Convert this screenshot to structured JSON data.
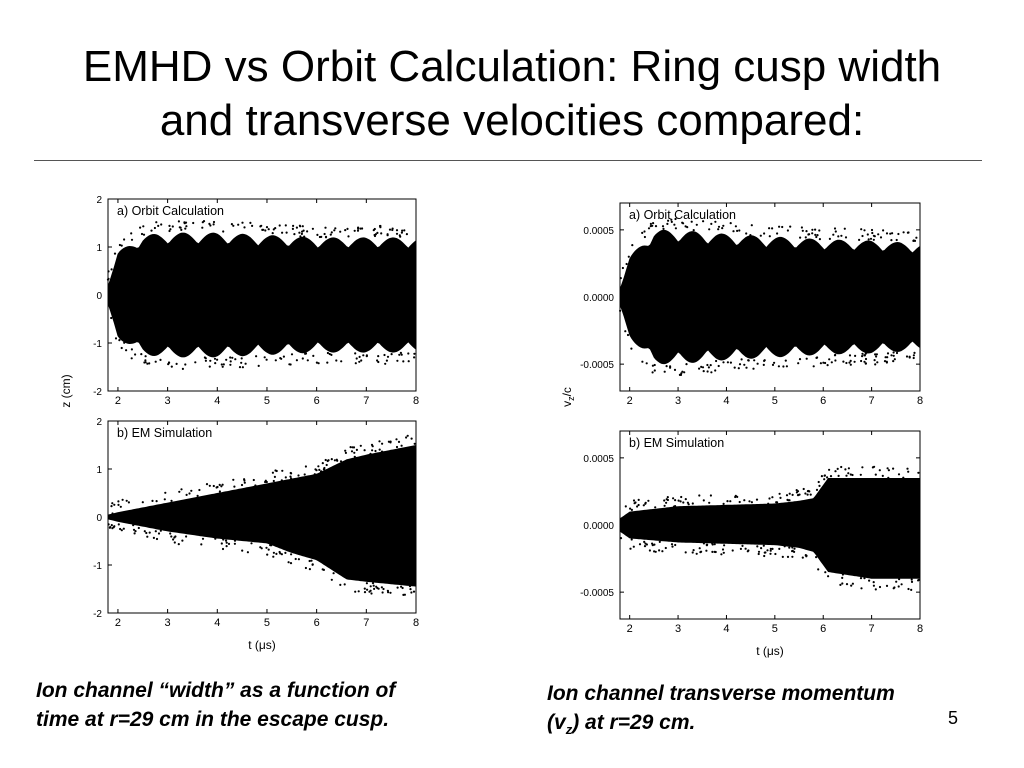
{
  "slide": {
    "title_line1": "EMHD vs Orbit Calculation: Ring cusp width",
    "title_line2": "and transverse velocities compared:",
    "caption_left_line1": "Ion channel “width” as a function of",
    "caption_left_line2": "time at r=29 cm in the escape cusp.",
    "caption_right_line1": "Ion channel transverse momentum",
    "caption_right_line2_pre": "(v",
    "caption_right_line2_sub": "z",
    "caption_right_line2_post": ") at r=29 cm.",
    "page_number": "5"
  },
  "chart_data": [
    {
      "type": "scatter",
      "panel": "left-top",
      "annotation": "a) Orbit Calculation",
      "xlim": [
        1.8,
        8
      ],
      "ylim": [
        -2,
        2
      ],
      "x_ticks": [
        2,
        3,
        4,
        5,
        6,
        7,
        8
      ],
      "y_ticks": [
        2,
        1,
        0,
        -1,
        -2
      ],
      "y_tick_labels": [
        "2",
        "1",
        "0",
        "-1",
        "-2"
      ],
      "ylabel": "",
      "xlabel": "",
      "envelope": {
        "t": [
          1.8,
          2.0,
          2.5,
          3.0,
          4.0,
          5.0,
          6.0,
          7.0,
          8.0
        ],
        "amp": [
          0.25,
          0.9,
          1.25,
          1.3,
          1.3,
          1.25,
          1.2,
          1.2,
          1.2
        ]
      }
    },
    {
      "type": "scatter",
      "panel": "left-bottom",
      "annotation": "b) EM Simulation",
      "xlim": [
        1.8,
        8
      ],
      "ylim": [
        -2,
        2
      ],
      "x_ticks": [
        2,
        3,
        4,
        5,
        6,
        7,
        8
      ],
      "y_ticks": [
        2,
        1,
        0,
        -1,
        -2
      ],
      "y_tick_labels": [
        "2",
        "1",
        "0",
        "-1",
        "-2"
      ],
      "xlabel": "t (μs)",
      "ylabel": "",
      "envelope": {
        "t": [
          1.8,
          2.0,
          3.0,
          4.0,
          5.0,
          5.5,
          6.0,
          6.3,
          6.6,
          7.0,
          8.0
        ],
        "upper": [
          0.05,
          0.1,
          0.3,
          0.5,
          0.7,
          0.8,
          0.9,
          1.05,
          1.2,
          1.3,
          1.5
        ],
        "lower": [
          -0.05,
          -0.1,
          -0.3,
          -0.45,
          -0.55,
          -0.75,
          -0.9,
          -1.1,
          -1.3,
          -1.35,
          -1.45
        ]
      }
    },
    {
      "type": "scatter",
      "panel": "right-top",
      "annotation": "a) Orbit Calculation",
      "xlim": [
        1.8,
        8
      ],
      "ylim": [
        -0.0007,
        0.0007
      ],
      "x_ticks": [
        2,
        3,
        4,
        5,
        6,
        7,
        8
      ],
      "y_ticks": [
        0.0005,
        0.0,
        -0.0005
      ],
      "y_tick_labels": [
        "0.0005",
        "0.0000",
        "-0.0005"
      ],
      "xlabel": "",
      "ylabel": "",
      "envelope": {
        "t": [
          1.8,
          2.0,
          2.5,
          3.0,
          4.0,
          5.0,
          6.0,
          7.0,
          8.0
        ],
        "amp": [
          8e-05,
          0.0003,
          0.0005,
          0.0005,
          0.00047,
          0.00045,
          0.00043,
          0.00042,
          0.0004
        ]
      }
    },
    {
      "type": "scatter",
      "panel": "right-bottom",
      "annotation": "b) EM Simulation",
      "xlim": [
        1.8,
        8
      ],
      "ylim": [
        -0.0007,
        0.0007
      ],
      "x_ticks": [
        2,
        3,
        4,
        5,
        6,
        7,
        8
      ],
      "y_ticks": [
        0.0005,
        0.0,
        -0.0005
      ],
      "y_tick_labels": [
        "0.0005",
        "0.0000",
        "-0.0005"
      ],
      "xlabel": "t (μs)",
      "ylabel": "",
      "envelope": {
        "t": [
          1.8,
          2.0,
          3.0,
          4.0,
          5.0,
          5.5,
          5.8,
          6.1,
          7.0,
          8.0
        ],
        "upper": [
          5e-05,
          0.0001,
          0.00014,
          0.00015,
          0.00016,
          0.00018,
          0.0002,
          0.00035,
          0.00035,
          0.00035
        ],
        "lower": [
          -5e-05,
          -0.0001,
          -0.00013,
          -0.00014,
          -0.00015,
          -0.00017,
          -0.0002,
          -0.00035,
          -0.0004,
          -0.0004
        ]
      }
    }
  ],
  "figure_labels": {
    "left_ylabel": "z (cm)",
    "right_ylabel_main": "v",
    "right_ylabel_sub": "z",
    "right_ylabel_post": "/c"
  },
  "colors": {
    "ink": "#000000",
    "rule": "#555555"
  }
}
